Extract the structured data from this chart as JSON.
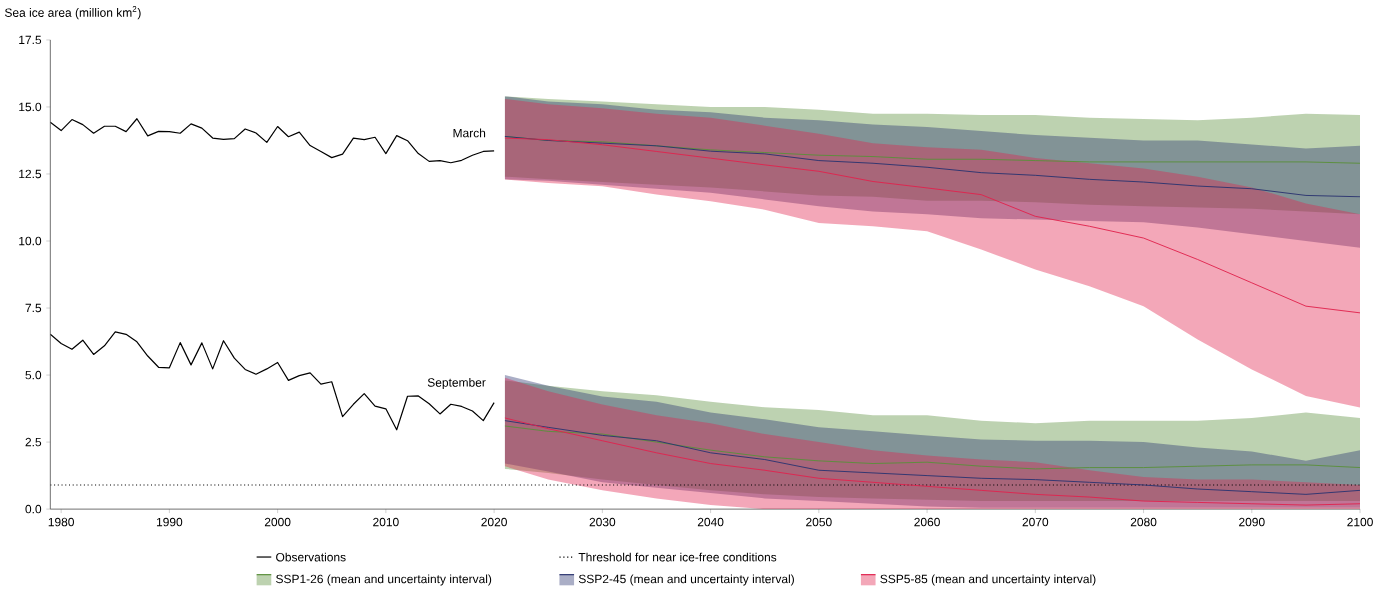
{
  "chart_data": {
    "type": "line",
    "ylabel": "Sea ice area (million km$^{2}$)",
    "xlim": [
      1979,
      2100
    ],
    "xticks": [
      1980,
      1990,
      2000,
      2010,
      2020,
      2030,
      2040,
      2050,
      2060,
      2070,
      2080,
      2090,
      2100
    ],
    "ylim": [
      0,
      17.5
    ],
    "yticks": [
      {
        "value": 0,
        "label": "0.0"
      },
      {
        "value": 2.5,
        "label": "2.5"
      },
      {
        "value": 5,
        "label": "5.0"
      },
      {
        "value": 7.5,
        "label": "7.5"
      },
      {
        "value": 10,
        "label": "10.0"
      },
      {
        "value": 12.5,
        "label": "12.5"
      },
      {
        "value": 15,
        "label": "15.0"
      },
      {
        "value": 17.5,
        "label": "17.5"
      }
    ],
    "legend": "bottom",
    "marker": "none",
    "line_style": "solid",
    "annotations": [
      "March",
      "September"
    ],
    "ref_lines": [
      {
        "axis": "y",
        "value": 0.9,
        "label": "Threshold for near ice-free conditions",
        "color": "#000000",
        "line_style": "dotted"
      }
    ],
    "series": [
      {
        "name": "Observations",
        "color": "#000000",
        "x": [
          1979,
          1980,
          1981,
          1982,
          1983,
          1984,
          1985,
          1986,
          1987,
          1988,
          1989,
          1990,
          1991,
          1992,
          1993,
          1994,
          1995,
          1996,
          1997,
          1998,
          1999,
          2000,
          2001,
          2002,
          2003,
          2004,
          2005,
          2006,
          2007,
          2008,
          2009,
          2010,
          2011,
          2012,
          2013,
          2014,
          2015,
          2016,
          2017,
          2018,
          2019,
          2020
        ],
        "values": [
          14.43,
          14.12,
          14.53,
          14.34,
          14.02,
          14.28,
          14.28,
          14.08,
          14.56,
          13.92,
          14.09,
          14.08,
          14.02,
          14.37,
          14.21,
          13.84,
          13.79,
          13.82,
          14.18,
          14.03,
          13.68,
          14.27,
          13.89,
          14.06,
          13.56,
          13.34,
          13.11,
          13.24,
          13.84,
          13.78,
          13.87,
          13.26,
          13.93,
          13.74,
          13.26,
          12.97,
          13.0,
          12.92,
          13.01,
          13.2,
          13.34,
          13.36
        ]
      },
      {
        "color": "#000000",
        "x": [
          1979,
          1980,
          1981,
          1982,
          1983,
          1984,
          1985,
          1986,
          1987,
          1988,
          1989,
          1990,
          1991,
          1992,
          1993,
          1994,
          1995,
          1996,
          1997,
          1998,
          1999,
          2000,
          2001,
          2002,
          2003,
          2004,
          2005,
          2006,
          2007,
          2008,
          2009,
          2010,
          2011,
          2012,
          2013,
          2014,
          2015,
          2016,
          2017,
          2018,
          2019,
          2020
        ],
        "values": [
          6.52,
          6.18,
          5.96,
          6.3,
          5.77,
          6.09,
          6.61,
          6.52,
          6.24,
          5.71,
          5.29,
          5.27,
          6.21,
          5.38,
          6.2,
          5.23,
          6.28,
          5.63,
          5.21,
          5.03,
          5.23,
          5.47,
          4.8,
          4.98,
          5.08,
          4.66,
          4.75,
          3.45,
          3.91,
          4.31,
          3.84,
          3.74,
          2.96,
          4.21,
          4.22,
          3.93,
          3.55,
          3.91,
          3.83,
          3.66,
          3.3,
          3.97
        ]
      },
      {
        "name": "SSP1-26 (mean and uncertainty interval)",
        "color": "#5a8f3a",
        "x": [
          2021,
          2025,
          2030,
          2035,
          2040,
          2045,
          2050,
          2055,
          2060,
          2065,
          2070,
          2075,
          2080,
          2085,
          2090,
          2095,
          2100
        ],
        "values": [
          13.9,
          13.75,
          13.7,
          13.55,
          13.4,
          13.3,
          13.2,
          13.15,
          13.05,
          13.05,
          13.0,
          12.95,
          12.95,
          12.95,
          12.95,
          12.95,
          12.9
        ],
        "upper": [
          15.4,
          15.3,
          15.2,
          15.1,
          15.0,
          15.0,
          14.9,
          14.75,
          14.75,
          14.7,
          14.7,
          14.6,
          14.55,
          14.5,
          14.6,
          14.75,
          14.7
        ],
        "lower": [
          12.4,
          12.3,
          12.2,
          12.1,
          12.0,
          11.85,
          11.7,
          11.65,
          11.5,
          11.5,
          11.45,
          11.35,
          11.3,
          11.25,
          11.2,
          11.1,
          11.0
        ]
      },
      {
        "name": "SSP2-45 (mean and uncertainty interval)",
        "color": "#2b3470",
        "x": [
          2021,
          2025,
          2030,
          2035,
          2040,
          2045,
          2050,
          2055,
          2060,
          2065,
          2070,
          2075,
          2080,
          2085,
          2090,
          2095,
          2100
        ],
        "values": [
          13.9,
          13.75,
          13.65,
          13.55,
          13.35,
          13.25,
          13.0,
          12.9,
          12.75,
          12.55,
          12.45,
          12.3,
          12.2,
          12.05,
          11.95,
          11.7,
          11.65
        ],
        "upper": [
          15.4,
          15.2,
          15.1,
          14.9,
          14.8,
          14.6,
          14.5,
          14.35,
          14.25,
          14.1,
          13.95,
          13.85,
          13.75,
          13.75,
          13.6,
          13.45,
          13.55
        ],
        "lower": [
          12.3,
          12.25,
          12.1,
          11.95,
          11.8,
          11.55,
          11.3,
          11.1,
          11.0,
          10.85,
          10.8,
          10.75,
          10.7,
          10.5,
          10.25,
          10.0,
          9.75
        ]
      },
      {
        "name": "SSP5-85 (mean and uncertainty interval)",
        "color": "#e0234e",
        "x": [
          2021,
          2025,
          2030,
          2035,
          2040,
          2045,
          2050,
          2055,
          2060,
          2065,
          2070,
          2075,
          2080,
          2085,
          2090,
          2095,
          2100
        ],
        "values": [
          13.84,
          13.78,
          13.59,
          13.34,
          13.09,
          12.84,
          12.6,
          12.22,
          11.98,
          11.73,
          10.92,
          10.55,
          10.11,
          9.31,
          8.44,
          7.57,
          7.32
        ],
        "upper": [
          15.3,
          15.1,
          14.95,
          14.75,
          14.6,
          14.3,
          14.0,
          13.65,
          13.5,
          13.4,
          13.1,
          12.9,
          12.7,
          12.4,
          12.0,
          11.4,
          11.0
        ],
        "lower": [
          12.29,
          12.16,
          12.04,
          11.73,
          11.48,
          11.17,
          10.67,
          10.55,
          10.36,
          9.68,
          8.94,
          8.31,
          7.57,
          6.33,
          5.21,
          4.22,
          3.79
        ]
      },
      {
        "color": "#5a8f3b",
        "x": [
          2021,
          2025,
          2030,
          2035,
          2040,
          2045,
          2050,
          2055,
          2060,
          2065,
          2070,
          2075,
          2080,
          2085,
          2090,
          2095,
          2100
        ],
        "values": [
          3.1,
          2.9,
          2.8,
          2.5,
          2.2,
          1.95,
          1.8,
          1.7,
          1.75,
          1.6,
          1.5,
          1.55,
          1.55,
          1.6,
          1.65,
          1.65,
          1.55
        ],
        "upper": [
          4.8,
          4.6,
          4.4,
          4.25,
          4.0,
          3.8,
          3.7,
          3.5,
          3.5,
          3.3,
          3.2,
          3.3,
          3.3,
          3.3,
          3.4,
          3.6,
          3.4
        ],
        "lower": [
          1.5,
          1.35,
          1.1,
          0.9,
          0.7,
          0.55,
          0.45,
          0.4,
          0.35,
          0.3,
          0.3,
          0.3,
          0.3,
          0.3,
          0.3,
          0.3,
          0.3
        ]
      },
      {
        "color": "#2b3471",
        "x": [
          2021,
          2025,
          2030,
          2035,
          2040,
          2045,
          2050,
          2055,
          2060,
          2065,
          2070,
          2075,
          2080,
          2085,
          2090,
          2095,
          2100
        ],
        "values": [
          3.3,
          3.05,
          2.75,
          2.55,
          2.1,
          1.85,
          1.45,
          1.35,
          1.25,
          1.15,
          1.1,
          1.0,
          0.9,
          0.75,
          0.65,
          0.55,
          0.7
        ],
        "upper": [
          5.0,
          4.6,
          4.2,
          4.0,
          3.6,
          3.35,
          3.05,
          2.9,
          2.75,
          2.6,
          2.55,
          2.55,
          2.5,
          2.3,
          2.15,
          1.8,
          2.2
        ],
        "lower": [
          1.7,
          1.4,
          1.0,
          0.8,
          0.6,
          0.4,
          0.3,
          0.2,
          0.1,
          0.05,
          0.05,
          0.05,
          0.05,
          0.05,
          0.05,
          0.05,
          0.05
        ]
      },
      {
        "color": "#e0234f",
        "x": [
          2021,
          2025,
          2030,
          2035,
          2040,
          2045,
          2050,
          2055,
          2060,
          2065,
          2070,
          2075,
          2080,
          2085,
          2090,
          2095,
          2100
        ],
        "values": [
          3.4,
          3.0,
          2.55,
          2.1,
          1.7,
          1.45,
          1.15,
          1.0,
          0.85,
          0.7,
          0.55,
          0.45,
          0.3,
          0.25,
          0.2,
          0.15,
          0.2
        ],
        "upper": [
          4.9,
          4.4,
          3.9,
          3.5,
          3.2,
          2.8,
          2.5,
          2.2,
          2.0,
          1.85,
          1.75,
          1.45,
          1.2,
          1.1,
          1.1,
          1.0,
          0.9
        ],
        "lower": [
          1.6,
          1.1,
          0.7,
          0.4,
          0.15,
          0,
          0,
          0,
          0,
          0,
          0,
          0,
          0,
          0,
          0,
          0,
          0
        ]
      }
    ]
  }
}
